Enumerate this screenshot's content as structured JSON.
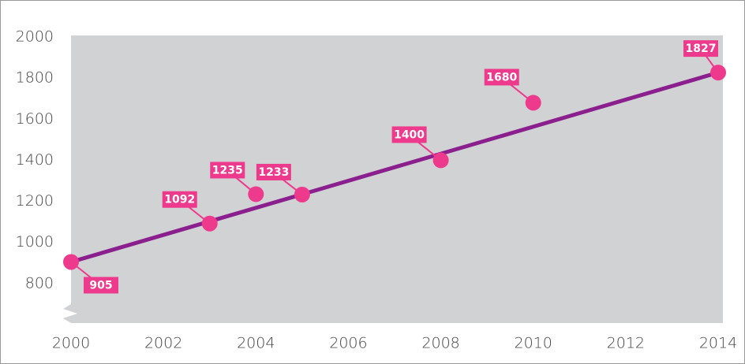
{
  "chart_data": {
    "type": "scatter",
    "x": [
      2000,
      2003,
      2004,
      2005,
      2008,
      2010,
      2014
    ],
    "values": [
      905,
      1092,
      1235,
      1233,
      1400,
      1680,
      1827
    ],
    "color": "#ee3a8c",
    "line_color": "#8b1f8e",
    "xlim": [
      2000,
      2014
    ],
    "xticks": [
      2000,
      2002,
      2004,
      2006,
      2008,
      2010,
      2012,
      2014
    ],
    "ylim": [
      600,
      2000
    ],
    "yticks": [
      800,
      1000,
      1200,
      1400,
      1600,
      1800,
      2000
    ]
  }
}
